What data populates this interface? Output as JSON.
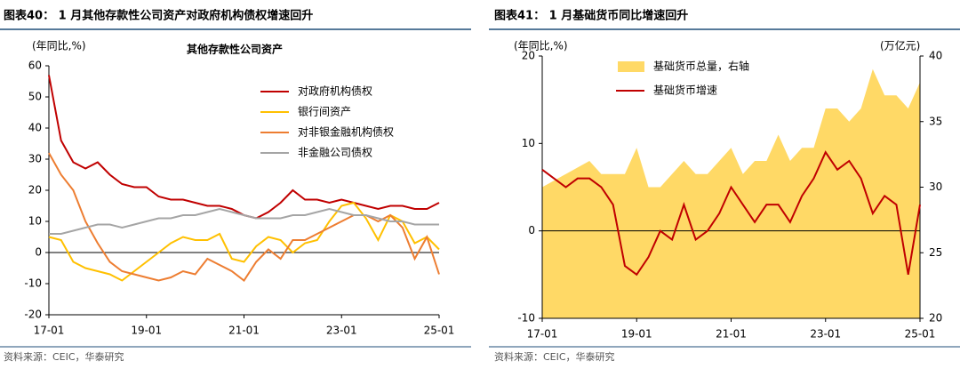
{
  "chart_data": [
    {
      "type": "line",
      "title": "图表40： 1 月其他存款性公司资产对政府机构债权增速回升",
      "subtitle": "其他存款性公司资产",
      "y_label": "(年同比,%)",
      "source": "资料来源：CEIC，华泰研究",
      "categories": [
        "17-01",
        null,
        null,
        null,
        null,
        null,
        null,
        null,
        "19-01",
        null,
        null,
        null,
        null,
        null,
        null,
        null,
        "21-01",
        null,
        null,
        null,
        null,
        null,
        null,
        null,
        "23-01",
        null,
        null,
        null,
        null,
        null,
        null,
        null,
        "25-01"
      ],
      "ylim": [
        -20,
        60
      ],
      "yticks": [
        -20,
        -10,
        0,
        10,
        20,
        30,
        40,
        50,
        60
      ],
      "series": [
        {
          "name": "对政府机构债权",
          "color": "#c00000",
          "values": [
            57,
            36,
            29,
            27,
            29,
            25,
            22,
            21,
            21,
            18,
            17,
            17,
            16,
            15,
            15,
            14,
            12,
            11,
            13,
            16,
            20,
            17,
            17,
            16,
            17,
            16,
            15,
            14,
            15,
            15,
            14,
            14,
            16
          ]
        },
        {
          "name": "银行间资产",
          "color": "#ffc000",
          "values": [
            5,
            4,
            -3,
            -5,
            -6,
            -7,
            -9,
            -6,
            -3,
            0,
            3,
            5,
            4,
            4,
            6,
            -2,
            -3,
            2,
            5,
            4,
            0,
            3,
            4,
            10,
            15,
            16,
            11,
            4,
            12,
            10,
            3,
            5,
            1
          ]
        },
        {
          "name": "对非银金融机构债权",
          "color": "#ed7d31",
          "values": [
            32,
            25,
            20,
            10,
            3,
            -3,
            -6,
            -7,
            -8,
            -9,
            -8,
            -6,
            -7,
            -2,
            -4,
            -6,
            -9,
            -3,
            1,
            -2,
            4,
            4,
            6,
            8,
            10,
            12,
            12,
            10,
            12,
            8,
            -2,
            5,
            -7
          ]
        },
        {
          "name": "非金融公司债权",
          "color": "#a5a5a5",
          "values": [
            6,
            6,
            7,
            8,
            9,
            9,
            8,
            9,
            10,
            11,
            11,
            12,
            12,
            13,
            14,
            13,
            12,
            11,
            11,
            11,
            12,
            12,
            13,
            14,
            13,
            12,
            12,
            11,
            10,
            10,
            9,
            9,
            9
          ]
        }
      ]
    },
    {
      "type": "combo",
      "title": "图表41： 1 月基础货币同比增速回升",
      "y_label": "(年同比,%)",
      "y2_label": "(万亿元)",
      "source": "资料来源：CEIC，华泰研究",
      "categories": [
        "17-01",
        null,
        null,
        null,
        null,
        null,
        null,
        null,
        "19-01",
        null,
        null,
        null,
        null,
        null,
        null,
        null,
        "21-01",
        null,
        null,
        null,
        null,
        null,
        null,
        null,
        "23-01",
        null,
        null,
        null,
        null,
        null,
        null,
        null,
        "25-01"
      ],
      "ylim": [
        -10,
        20
      ],
      "yticks": [
        -10,
        0,
        10,
        20
      ],
      "y2lim": [
        20,
        40
      ],
      "y2ticks": [
        20,
        25,
        30,
        35,
        40
      ],
      "series": [
        {
          "name": "基础货币总量，右轴",
          "color": "#ffd966",
          "style": "area",
          "axis": "y2",
          "values": [
            30,
            30.5,
            31,
            31.5,
            32,
            31,
            31,
            31,
            33,
            30,
            30,
            31,
            32,
            31,
            31,
            32,
            33,
            31,
            32,
            32,
            34,
            32,
            33,
            33,
            36,
            36,
            35,
            36,
            39,
            37,
            37,
            36,
            38
          ]
        },
        {
          "name": "基础货币增速",
          "color": "#c00000",
          "style": "line",
          "values": [
            7,
            6,
            5,
            6,
            6,
            5,
            3,
            -4,
            -5,
            -3,
            0,
            -1,
            3,
            -1,
            0,
            2,
            5,
            3,
            1,
            3,
            3,
            1,
            4,
            6,
            9,
            7,
            8,
            6,
            2,
            4,
            3,
            -5,
            3
          ]
        }
      ]
    }
  ]
}
